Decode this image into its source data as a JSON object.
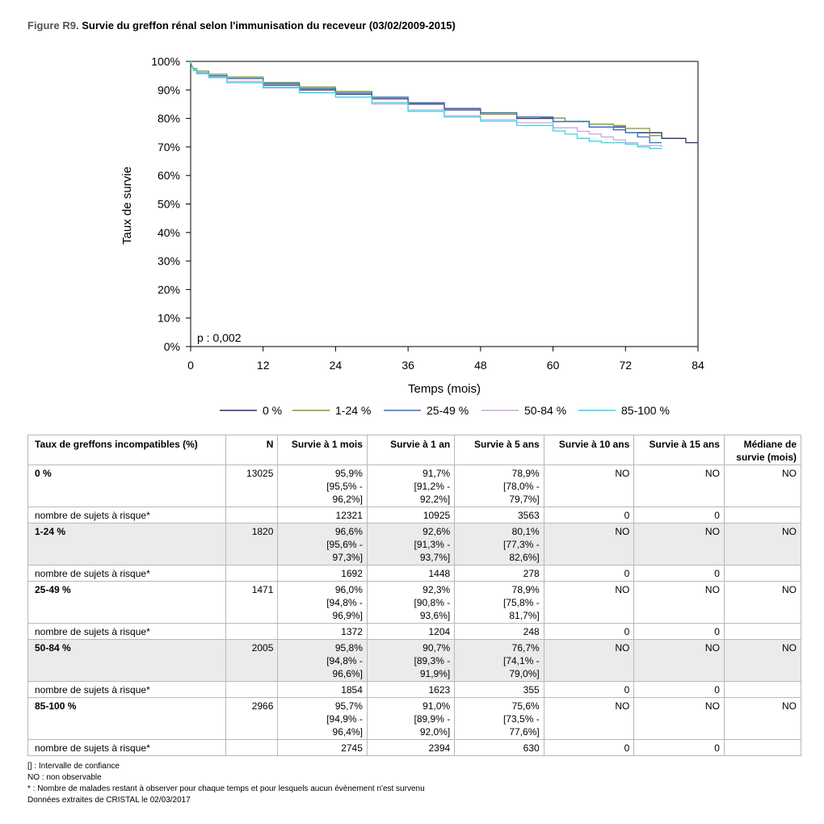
{
  "figure": {
    "number": "Figure R9.",
    "title": "Survie du greffon rénal selon l'immunisation du receveur (03/02/2009-2015)"
  },
  "chart_data": {
    "type": "line",
    "title": "Survie du greffon rénal selon l'immunisation du receveur (03/02/2009-2015)",
    "xlabel": "Temps (mois)",
    "ylabel": "Taux de survie",
    "xlim": [
      0,
      84
    ],
    "ylim": [
      0,
      100
    ],
    "xticks": [
      0,
      12,
      24,
      36,
      48,
      60,
      72,
      84
    ],
    "yticks": [
      "0%",
      "10%",
      "20%",
      "30%",
      "40%",
      "50%",
      "60%",
      "70%",
      "80%",
      "90%",
      "100%"
    ],
    "yticks_values": [
      0,
      10,
      20,
      30,
      40,
      50,
      60,
      70,
      80,
      90,
      100
    ],
    "annotation": "p : 0,002",
    "legend_position": "bottom",
    "series": [
      {
        "name": "0 %",
        "color": "#2b2d6e",
        "x": [
          0,
          0.2,
          0.5,
          1,
          3,
          6,
          12,
          18,
          24,
          30,
          36,
          42,
          48,
          54,
          60,
          66,
          72,
          78,
          82,
          84
        ],
        "y": [
          100,
          98.5,
          97,
          95.9,
          95,
          94,
          91.7,
          90,
          88.5,
          86.9,
          85,
          83,
          81.5,
          80,
          78.9,
          77,
          75,
          73,
          71.5,
          70.5
        ]
      },
      {
        "name": "1-24 %",
        "color": "#7b9a2a",
        "x": [
          0,
          0.2,
          0.5,
          1,
          3,
          6,
          12,
          18,
          24,
          30,
          36,
          42,
          48,
          54,
          58,
          60,
          62,
          66,
          70,
          72,
          73,
          76,
          78
        ],
        "y": [
          100,
          98.5,
          97.5,
          96.6,
          95.5,
          94.5,
          92.6,
          91,
          89.5,
          87.5,
          85.5,
          83.5,
          81.5,
          80.5,
          80.3,
          80.1,
          79,
          78,
          77.5,
          76.5,
          76.5,
          74,
          74
        ]
      },
      {
        "name": "25-49 %",
        "color": "#3a6fc4",
        "x": [
          0,
          0.2,
          0.5,
          1,
          3,
          6,
          12,
          18,
          24,
          30,
          36,
          42,
          48,
          52,
          54,
          60,
          66,
          70,
          72,
          74,
          76,
          78
        ],
        "y": [
          100,
          98.5,
          97,
          96,
          95,
          94,
          92.3,
          90.5,
          89,
          87.5,
          85.5,
          83.5,
          82,
          82,
          80.5,
          78.9,
          77,
          76,
          75,
          73.5,
          71.5,
          71.5
        ]
      },
      {
        "name": "50-84 %",
        "color": "#c9a5e0",
        "x": [
          0,
          0.2,
          0.5,
          1,
          3,
          6,
          12,
          18,
          24,
          30,
          36,
          42,
          48,
          54,
          60,
          64,
          66,
          68,
          70,
          72,
          74,
          78
        ],
        "y": [
          100,
          98.5,
          97,
          95.8,
          94.5,
          93,
          90.7,
          89,
          87.5,
          85,
          83,
          81,
          79.5,
          78.5,
          76.7,
          75.5,
          74.5,
          73.5,
          72.5,
          71.5,
          70.5,
          70
        ]
      },
      {
        "name": "85-100 %",
        "color": "#33d6e6",
        "x": [
          0,
          0.2,
          0.5,
          1,
          3,
          6,
          12,
          18,
          24,
          30,
          36,
          42,
          48,
          54,
          60,
          62,
          64,
          66,
          68,
          70,
          72,
          74,
          76,
          78
        ],
        "y": [
          100,
          98.3,
          96.8,
          95.7,
          94.3,
          92.5,
          91,
          89,
          87.5,
          85.5,
          82.5,
          80.5,
          79,
          77.5,
          75.6,
          74.5,
          73,
          72,
          71.5,
          71.5,
          71,
          70,
          69.5,
          69.5
        ]
      }
    ]
  },
  "table": {
    "headers": [
      "Taux de greffons incompatibles (%)",
      "N",
      "Survie à 1 mois",
      "Survie à 1 an",
      "Survie à 5 ans",
      "Survie à 10 ans",
      "Survie à 15 ans",
      "Médiane de survie (mois)"
    ],
    "risk_label": "nombre de sujets à risque*",
    "groups": [
      {
        "group": "0 %",
        "n": "13025",
        "s1m": [
          "95,9%",
          "[95,5% -",
          "96,2%]"
        ],
        "s1y": [
          "91,7%",
          "[91,2% -",
          "92,2%]"
        ],
        "s5y": [
          "78,9%",
          "[78,0% -",
          "79,7%]"
        ],
        "s10y": "NO",
        "s15y": "NO",
        "median": "NO",
        "risk": [
          "12321",
          "10925",
          "3563",
          "0",
          "0"
        ]
      },
      {
        "group": "1-24 %",
        "n": "1820",
        "s1m": [
          "96,6%",
          "[95,6% -",
          "97,3%]"
        ],
        "s1y": [
          "92,6%",
          "[91,3% -",
          "93,7%]"
        ],
        "s5y": [
          "80,1%",
          "[77,3% -",
          "82,6%]"
        ],
        "s10y": "NO",
        "s15y": "NO",
        "median": "NO",
        "risk": [
          "1692",
          "1448",
          "278",
          "0",
          "0"
        ]
      },
      {
        "group": "25-49 %",
        "n": "1471",
        "s1m": [
          "96,0%",
          "[94,8% -",
          "96,9%]"
        ],
        "s1y": [
          "92,3%",
          "[90,8% -",
          "93,6%]"
        ],
        "s5y": [
          "78,9%",
          "[75,8% -",
          "81,7%]"
        ],
        "s10y": "NO",
        "s15y": "NO",
        "median": "NO",
        "risk": [
          "1372",
          "1204",
          "248",
          "0",
          "0"
        ]
      },
      {
        "group": "50-84 %",
        "n": "2005",
        "s1m": [
          "95,8%",
          "[94,8% -",
          "96,6%]"
        ],
        "s1y": [
          "90,7%",
          "[89,3% -",
          "91,9%]"
        ],
        "s5y": [
          "76,7%",
          "[74,1% -",
          "79,0%]"
        ],
        "s10y": "NO",
        "s15y": "NO",
        "median": "NO",
        "risk": [
          "1854",
          "1623",
          "355",
          "0",
          "0"
        ]
      },
      {
        "group": "85-100 %",
        "n": "2966",
        "s1m": [
          "95,7%",
          "[94,9% -",
          "96,4%]"
        ],
        "s1y": [
          "91,0%",
          "[89,9% -",
          "92,0%]"
        ],
        "s5y": [
          "75,6%",
          "[73,5% -",
          "77,6%]"
        ],
        "s10y": "NO",
        "s15y": "NO",
        "median": "NO",
        "risk": [
          "2745",
          "2394",
          "630",
          "0",
          "0"
        ]
      }
    ]
  },
  "notes": [
    "[] : Intervalle de confiance",
    "NO : non observable",
    "* : Nombre de malades restant à observer pour chaque temps et pour lesquels aucun évènement n'est survenu",
    "Données extraites de CRISTAL le 02/03/2017"
  ]
}
